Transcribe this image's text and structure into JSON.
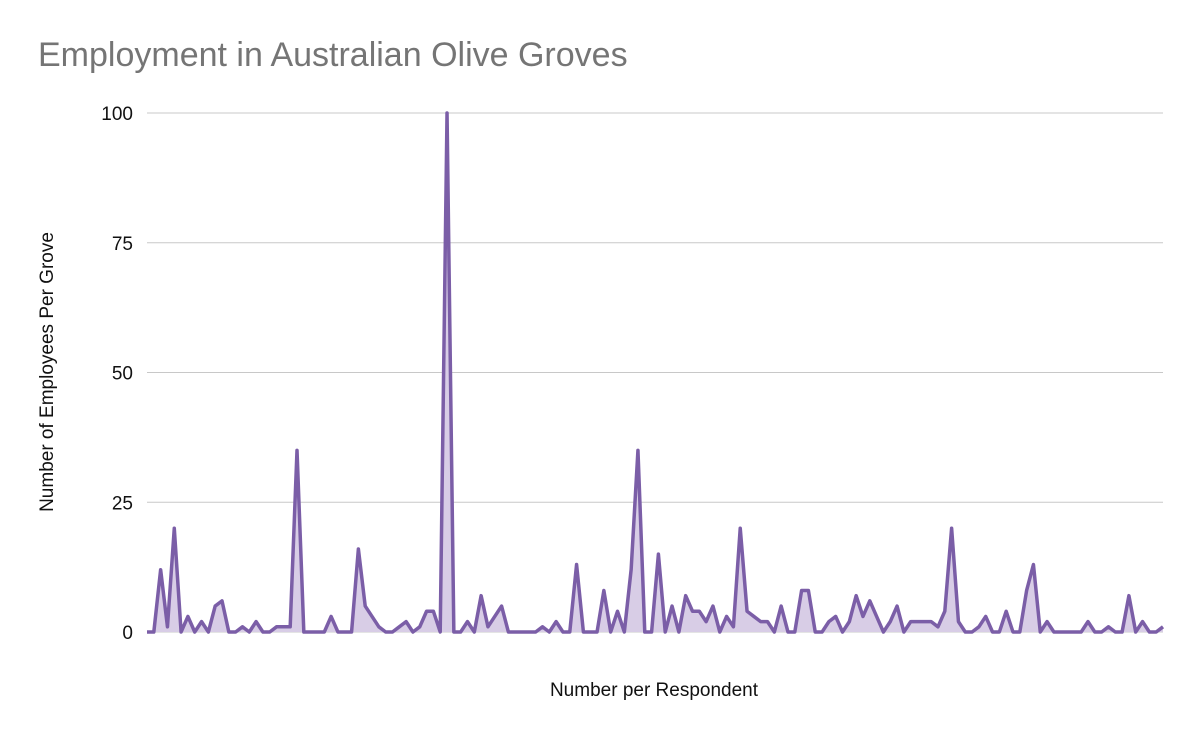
{
  "chart_data": {
    "type": "area",
    "title": "Employment in Australian Olive Groves",
    "xlabel": "Number per Respondent",
    "ylabel": "Number of Employees Per Grove",
    "ylim": [
      0,
      100
    ],
    "yticks": [
      0,
      25,
      50,
      75,
      100
    ],
    "grid": true,
    "legend": "none",
    "colors": {
      "line": "#7b5ea7",
      "fill": "#d8cde6",
      "grid": "#c8c8c8",
      "title": "#757575"
    },
    "values": [
      0,
      0,
      12,
      1,
      20,
      0,
      3,
      0,
      2,
      0,
      5,
      6,
      0,
      0,
      1,
      0,
      2,
      0,
      0,
      1,
      1,
      1,
      35,
      0,
      0,
      0,
      0,
      3,
      0,
      0,
      0,
      16,
      5,
      3,
      1,
      0,
      0,
      1,
      2,
      0,
      1,
      4,
      4,
      0,
      100,
      0,
      0,
      2,
      0,
      7,
      1,
      3,
      5,
      0,
      0,
      0,
      0,
      0,
      1,
      0,
      2,
      0,
      0,
      13,
      0,
      0,
      0,
      8,
      0,
      4,
      0,
      12,
      35,
      0,
      0,
      15,
      0,
      5,
      0,
      7,
      4,
      4,
      2,
      5,
      0,
      3,
      1,
      20,
      4,
      3,
      2,
      2,
      0,
      5,
      0,
      0,
      8,
      8,
      0,
      0,
      2,
      3,
      0,
      2,
      7,
      3,
      6,
      3,
      0,
      2,
      5,
      0,
      2,
      2,
      2,
      2,
      1,
      4,
      20,
      2,
      0,
      0,
      1,
      3,
      0,
      0,
      4,
      0,
      0,
      8,
      13,
      0,
      2,
      0,
      0,
      0,
      0,
      0,
      2,
      0,
      0,
      1,
      0,
      0,
      7,
      0,
      2,
      0,
      0,
      1
    ]
  }
}
